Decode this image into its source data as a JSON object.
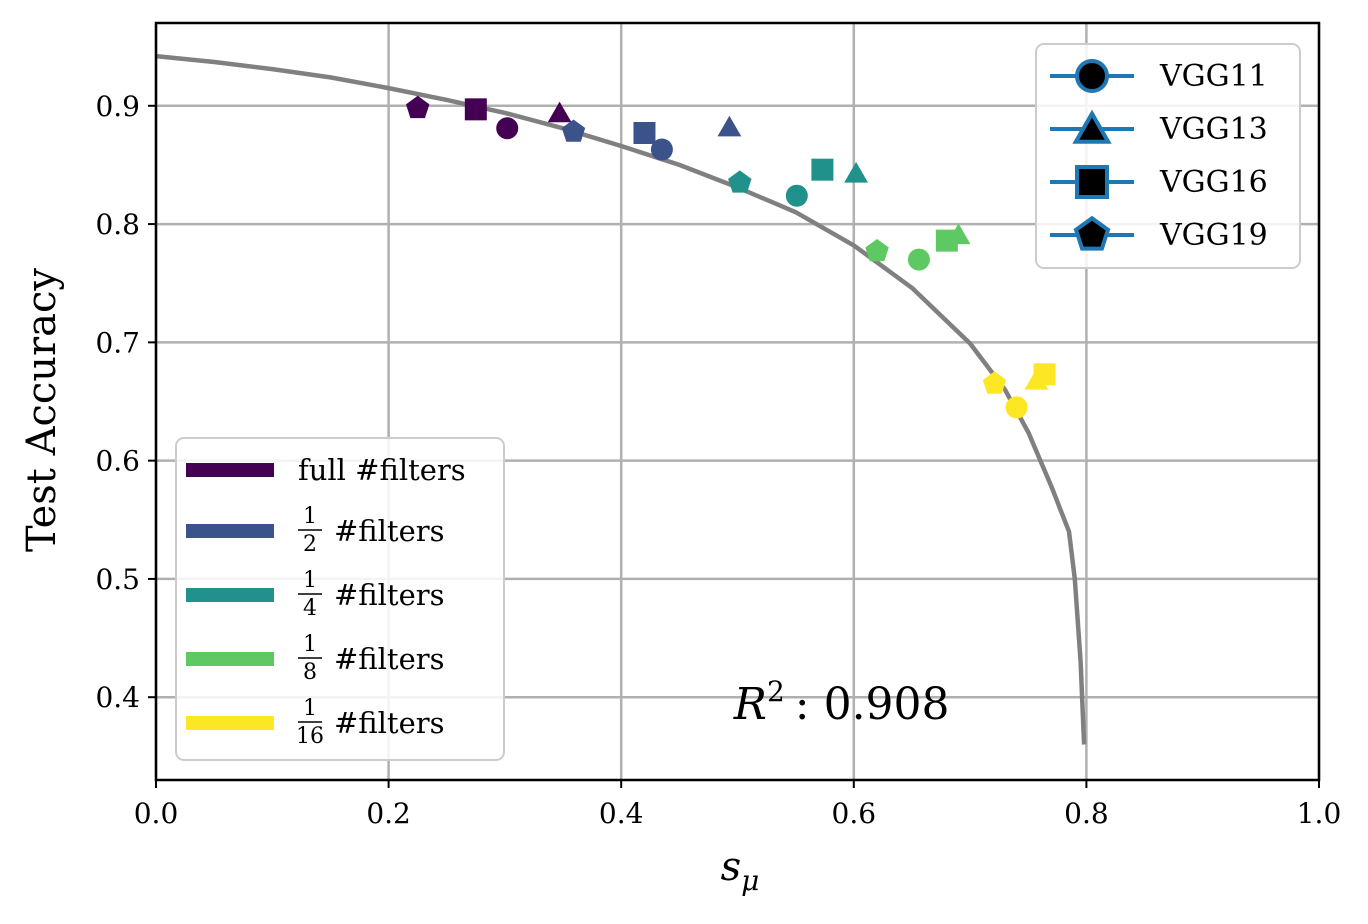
{
  "chart_data": {
    "type": "scatter",
    "title": "",
    "xlabel_main": "s",
    "xlabel_sub": "μ",
    "ylabel": "Test Accuracy",
    "xlim": [
      0.0,
      1.0
    ],
    "ylim": [
      0.33,
      0.97
    ],
    "xticks": [
      0.0,
      0.2,
      0.4,
      0.6,
      0.8,
      1.0
    ],
    "xtick_labels": [
      "0.0",
      "0.2",
      "0.4",
      "0.6",
      "0.8",
      "1.0"
    ],
    "yticks": [
      0.4,
      0.5,
      0.6,
      0.7,
      0.8,
      0.9
    ],
    "ytick_labels": [
      "0.4",
      "0.5",
      "0.6",
      "0.7",
      "0.8",
      "0.9"
    ],
    "grid": true,
    "annotation": {
      "prefix": "R",
      "sup": "2",
      "rest": ": 0.908",
      "x": 0.6,
      "y": 0.385
    },
    "fit_curve": {
      "color": "#808080",
      "points": [
        [
          0.0,
          0.942
        ],
        [
          0.05,
          0.937
        ],
        [
          0.1,
          0.931
        ],
        [
          0.15,
          0.924
        ],
        [
          0.2,
          0.915
        ],
        [
          0.25,
          0.905
        ],
        [
          0.3,
          0.894
        ],
        [
          0.35,
          0.881
        ],
        [
          0.4,
          0.866
        ],
        [
          0.45,
          0.85
        ],
        [
          0.5,
          0.831
        ],
        [
          0.55,
          0.81
        ],
        [
          0.6,
          0.782
        ],
        [
          0.65,
          0.746
        ],
        [
          0.7,
          0.699
        ],
        [
          0.73,
          0.66
        ],
        [
          0.75,
          0.624
        ],
        [
          0.77,
          0.578
        ],
        [
          0.785,
          0.54
        ],
        [
          0.79,
          0.5
        ],
        [
          0.795,
          0.43
        ],
        [
          0.798,
          0.36
        ]
      ]
    },
    "filter_legend": {
      "location": "lower-left",
      "entries": [
        {
          "prefix": "",
          "num": "",
          "den": "",
          "label": "full #filters",
          "color": "#440154"
        },
        {
          "prefix": "",
          "num": "1",
          "den": "2",
          "label": "#filters",
          "color": "#3b528b"
        },
        {
          "prefix": "",
          "num": "1",
          "den": "4",
          "label": "#filters",
          "color": "#21918c"
        },
        {
          "prefix": "",
          "num": "1",
          "den": "8",
          "label": "#filters",
          "color": "#5ec962"
        },
        {
          "prefix": "",
          "num": "1",
          "den": "16",
          "label": "#filters",
          "color": "#fde725"
        }
      ]
    },
    "model_legend": {
      "location": "upper-right",
      "marker_color": "#000000",
      "line_color": "#1f77b4",
      "entries": [
        {
          "label": "VGG11",
          "marker": "circle"
        },
        {
          "label": "VGG13",
          "marker": "triangle"
        },
        {
          "label": "VGG16",
          "marker": "square"
        },
        {
          "label": "VGG19",
          "marker": "pentagon"
        }
      ]
    },
    "series": [
      {
        "name": "full #filters",
        "color": "#440154",
        "points": [
          {
            "model": "VGG11",
            "marker": "circle",
            "x": 0.302,
            "y": 0.881
          },
          {
            "model": "VGG13",
            "marker": "triangle",
            "x": 0.347,
            "y": 0.894
          },
          {
            "model": "VGG16",
            "marker": "square",
            "x": 0.275,
            "y": 0.897
          },
          {
            "model": "VGG19",
            "marker": "pentagon",
            "x": 0.225,
            "y": 0.898
          }
        ]
      },
      {
        "name": "1/2 #filters",
        "color": "#3b528b",
        "points": [
          {
            "model": "VGG11",
            "marker": "circle",
            "x": 0.435,
            "y": 0.863
          },
          {
            "model": "VGG13",
            "marker": "triangle",
            "x": 0.493,
            "y": 0.882
          },
          {
            "model": "VGG16",
            "marker": "square",
            "x": 0.42,
            "y": 0.877
          },
          {
            "model": "VGG19",
            "marker": "pentagon",
            "x": 0.359,
            "y": 0.878
          }
        ]
      },
      {
        "name": "1/4 #filters",
        "color": "#21918c",
        "points": [
          {
            "model": "VGG11",
            "marker": "circle",
            "x": 0.551,
            "y": 0.824
          },
          {
            "model": "VGG13",
            "marker": "triangle",
            "x": 0.602,
            "y": 0.843
          },
          {
            "model": "VGG16",
            "marker": "square",
            "x": 0.573,
            "y": 0.846
          },
          {
            "model": "VGG19",
            "marker": "pentagon",
            "x": 0.502,
            "y": 0.835
          }
        ]
      },
      {
        "name": "1/8 #filters",
        "color": "#5ec962",
        "points": [
          {
            "model": "VGG11",
            "marker": "circle",
            "x": 0.656,
            "y": 0.77
          },
          {
            "model": "VGG13",
            "marker": "triangle",
            "x": 0.69,
            "y": 0.791
          },
          {
            "model": "VGG16",
            "marker": "square",
            "x": 0.68,
            "y": 0.786
          },
          {
            "model": "VGG19",
            "marker": "pentagon",
            "x": 0.62,
            "y": 0.777
          }
        ]
      },
      {
        "name": "1/16 #filters",
        "color": "#fde725",
        "points": [
          {
            "model": "VGG11",
            "marker": "circle",
            "x": 0.74,
            "y": 0.645
          },
          {
            "model": "VGG13",
            "marker": "triangle",
            "x": 0.757,
            "y": 0.668
          },
          {
            "model": "VGG16",
            "marker": "square",
            "x": 0.764,
            "y": 0.673
          },
          {
            "model": "VGG19",
            "marker": "pentagon",
            "x": 0.721,
            "y": 0.665
          }
        ]
      }
    ]
  }
}
